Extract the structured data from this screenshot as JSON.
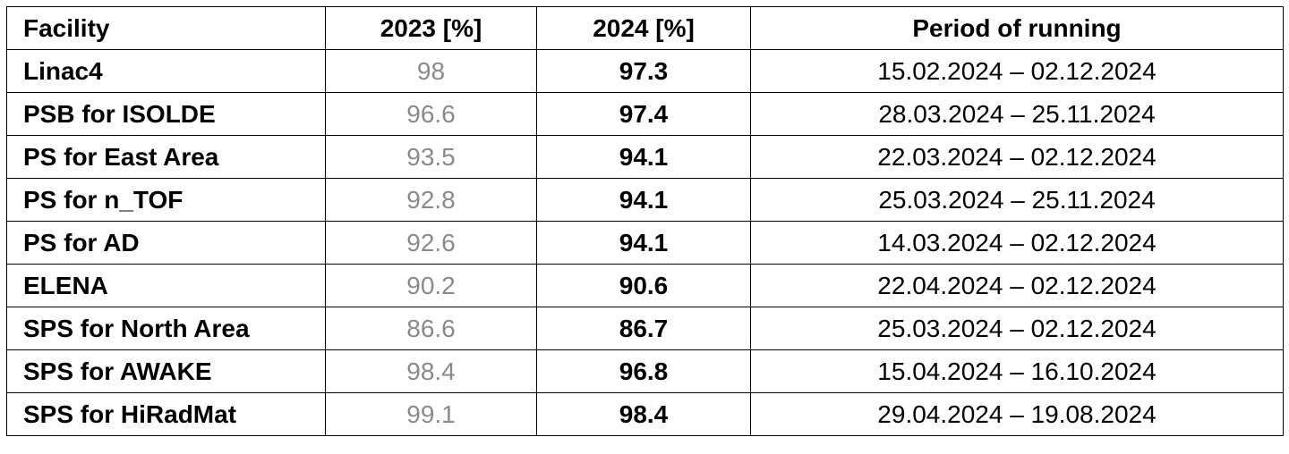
{
  "table": {
    "header": [
      "Facility",
      "2023 [%]",
      "2024 [%]",
      "Period of running"
    ],
    "rows": [
      [
        "Linac4",
        "98",
        "97.3",
        "15.02.2024 – 02.12.2024"
      ],
      [
        "PSB for ISOLDE",
        "96.6",
        "97.4",
        "28.03.2024 – 25.11.2024"
      ],
      [
        "PS for East Area",
        "93.5",
        "94.1",
        "22.03.2024 – 02.12.2024"
      ],
      [
        "PS for n_TOF",
        "92.8",
        "94.1",
        "25.03.2024 – 25.11.2024"
      ],
      [
        "PS for AD",
        "92.6",
        "94.1",
        "14.03.2024 – 02.12.2024"
      ],
      [
        "ELENA",
        "90.2",
        "90.6",
        "22.04.2024 – 02.12.2024"
      ],
      [
        "SPS for North Area",
        "86.6",
        "86.7",
        "25.03.2024 – 02.12.2024"
      ],
      [
        "SPS for AWAKE",
        "98.4",
        "96.8",
        "15.04.2024 – 16.10.2024"
      ],
      [
        "SPS for HiRadMat",
        "99.1",
        "98.4",
        "29.04.2024 – 19.08.2024"
      ]
    ]
  }
}
